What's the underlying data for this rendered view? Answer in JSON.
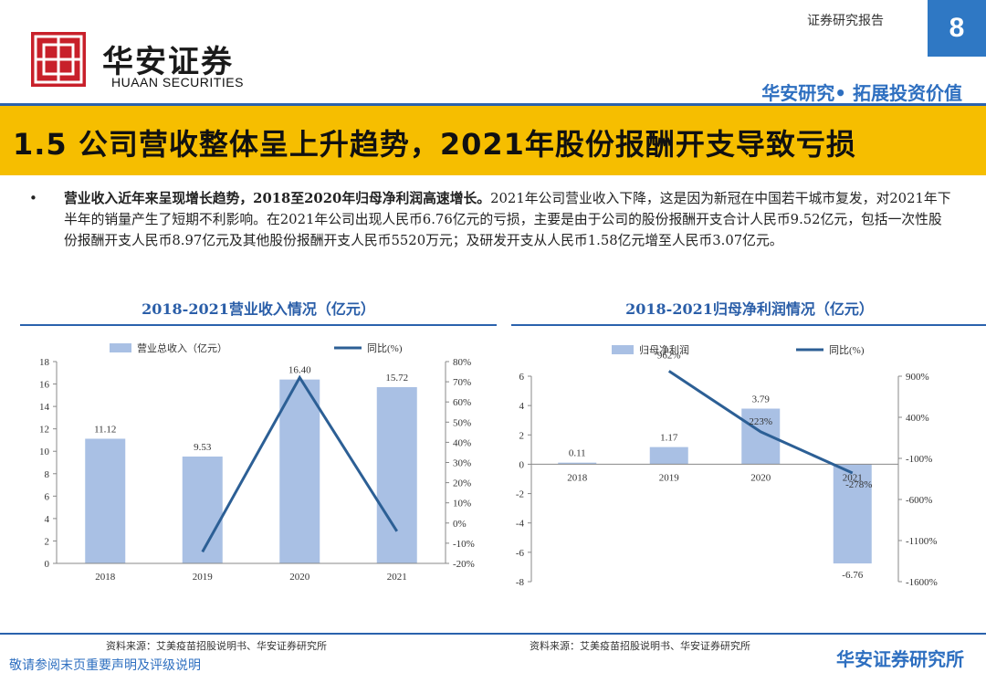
{
  "header": {
    "logo_cn": "华安证券",
    "logo_en": "HUAAN SECURITIES",
    "report_label": "证券研究报告",
    "page_number": "8",
    "slogan": "华安研究• 拓展投资价值"
  },
  "title": "1.5 公司营收整体呈上升趋势，2021年股份报酬开支导致亏损",
  "bullet": {
    "bold": "营业收入近年来呈现增长趋势，2018至2020年归母净利润高速增长。",
    "text": "2021年公司营业收入下降，这是因为新冠在中国若干城市复发，对2021年下半年的销量产生了短期不利影响。在2021年公司出现人民币6.76亿元的亏损，主要是由于公司的股份报酬开支合计人民币9.52亿元，包括一次性股份报酬开支人民币8.97亿元及其他股份报酬开支人民币5520万元；及研发开支从人民币1.58亿元增至人民币3.07亿元。"
  },
  "colors": {
    "bar": "#a9c0e4",
    "line": "#2c5f95",
    "accent": "#2e6fc0",
    "title_bar": "#f6be00",
    "brand_red": "#c8202a"
  },
  "chart_data": [
    {
      "type": "bar",
      "title": "2018-2021营业收入情况（亿元）",
      "categories": [
        "2018",
        "2019",
        "2020",
        "2021"
      ],
      "series": [
        {
          "name": "营业总收入（亿元）",
          "type": "bar",
          "axis": "left",
          "values": [
            11.12,
            9.53,
            16.4,
            15.72
          ],
          "labels": [
            "11.12",
            "9.53",
            "16.40",
            "15.72"
          ]
        },
        {
          "name": "同比(%)",
          "type": "line",
          "axis": "right",
          "values": [
            null,
            -14.3,
            72.1,
            -4.1
          ]
        }
      ],
      "ylim": [
        0,
        18
      ],
      "yticks": [
        0,
        2,
        4,
        6,
        8,
        10,
        12,
        14,
        16,
        18
      ],
      "y2lim": [
        -20,
        80
      ],
      "y2ticks": [
        -20,
        -10,
        0,
        10,
        20,
        30,
        40,
        50,
        60,
        70,
        80
      ],
      "y2ticklabels": [
        "-20%",
        "-10%",
        "0%",
        "10%",
        "20%",
        "30%",
        "40%",
        "50%",
        "60%",
        "70%",
        "80%"
      ],
      "legend": "top",
      "source": "资料来源：艾美疫苗招股说明书、华安证券研究所"
    },
    {
      "type": "bar",
      "title": "2018-2021归母净利润情况（亿元）",
      "categories": [
        "2018",
        "2019",
        "2020",
        "2021"
      ],
      "series": [
        {
          "name": "归母净利润",
          "type": "bar",
          "axis": "left",
          "values": [
            0.11,
            1.17,
            3.79,
            -6.76
          ],
          "labels": [
            "0.11",
            "1.17",
            "3.79",
            "-6.76"
          ]
        },
        {
          "name": "同比(%)",
          "type": "line",
          "axis": "right",
          "values": [
            null,
            962,
            223,
            -278
          ],
          "labels": [
            "",
            "962%",
            "223%",
            "-278%"
          ]
        }
      ],
      "ylim": [
        -8,
        6
      ],
      "yticks": [
        -8,
        -6,
        -4,
        -2,
        0,
        2,
        4,
        6
      ],
      "y2lim": [
        -1600,
        900
      ],
      "y2ticks": [
        -1600,
        -1100,
        -600,
        -100,
        400,
        900
      ],
      "y2ticklabels": [
        "-1600%",
        "-1100%",
        "-600%",
        "-100%",
        "400%",
        "900%"
      ],
      "legend": "top",
      "source": "资料来源：艾美疫苗招股说明书、华安证券研究所"
    }
  ],
  "footer": {
    "disclaimer": "敬请参阅末页重要声明及评级说明",
    "brand": "华安证券研究所"
  }
}
